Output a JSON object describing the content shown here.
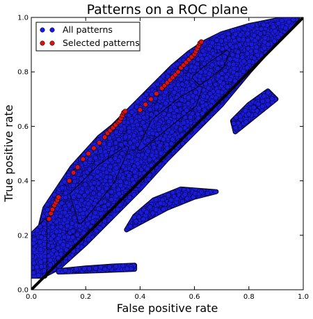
{
  "chart_data": {
    "type": "scatter",
    "title": "Patterns on a ROC plane",
    "xlabel": "False positive rate",
    "ylabel": "True positive rate",
    "xlim": [
      0.0,
      1.0
    ],
    "ylim": [
      0.0,
      1.0
    ],
    "xticks": [
      "0.0",
      "0.2",
      "0.4",
      "0.6",
      "0.8",
      "1.0"
    ],
    "yticks": [
      "0.0",
      "0.2",
      "0.4",
      "0.6",
      "0.8",
      "1.0"
    ],
    "grid": false,
    "legend_position": "top-left",
    "diagonal": {
      "x": [
        0.0,
        1.0
      ],
      "y": [
        0.0,
        1.0
      ],
      "color": "#000000"
    },
    "series": [
      {
        "name": "All patterns",
        "color": "#1a1adc",
        "edge_color": "#000000",
        "regions": [
          {
            "polygon": [
              [
                0.0,
                0.05
              ],
              [
                0.0,
                0.1
              ],
              [
                0.05,
                0.3
              ],
              [
                0.15,
                0.45
              ],
              [
                0.25,
                0.56
              ],
              [
                0.3,
                0.6
              ],
              [
                0.34,
                0.64
              ],
              [
                0.4,
                0.7
              ],
              [
                0.46,
                0.76
              ],
              [
                0.52,
                0.82
              ],
              [
                0.58,
                0.87
              ],
              [
                0.64,
                0.91
              ],
              [
                0.7,
                0.94
              ],
              [
                0.8,
                0.97
              ],
              [
                0.9,
                0.99
              ],
              [
                0.98,
                1.0
              ],
              [
                0.9,
                0.91
              ],
              [
                0.8,
                0.8
              ],
              [
                0.7,
                0.68
              ],
              [
                0.6,
                0.58
              ],
              [
                0.5,
                0.48
              ],
              [
                0.4,
                0.37
              ],
              [
                0.3,
                0.27
              ],
              [
                0.2,
                0.17
              ],
              [
                0.1,
                0.08
              ],
              [
                0.04,
                0.05
              ]
            ]
          },
          {
            "polygon": [
              [
                0.4,
                0.52
              ],
              [
                0.5,
                0.6
              ],
              [
                0.6,
                0.68
              ],
              [
                0.62,
                0.74
              ],
              [
                0.55,
                0.7
              ],
              [
                0.45,
                0.62
              ]
            ]
          },
          {
            "polygon": [
              [
                0.18,
                0.25
              ],
              [
                0.3,
                0.4
              ],
              [
                0.35,
                0.52
              ],
              [
                0.25,
                0.45
              ],
              [
                0.15,
                0.35
              ]
            ]
          },
          {
            "polygon": [
              [
                0.35,
                0.22
              ],
              [
                0.5,
                0.3
              ],
              [
                0.6,
                0.34
              ],
              [
                0.68,
                0.36
              ],
              [
                0.55,
                0.37
              ],
              [
                0.45,
                0.33
              ],
              [
                0.38,
                0.27
              ]
            ]
          },
          {
            "polygon": [
              [
                0.75,
                0.58
              ],
              [
                0.85,
                0.66
              ],
              [
                0.9,
                0.7
              ],
              [
                0.87,
                0.73
              ],
              [
                0.8,
                0.68
              ],
              [
                0.74,
                0.62
              ]
            ]
          },
          {
            "polygon": [
              [
                0.1,
                0.07
              ],
              [
                0.2,
                0.08
              ],
              [
                0.3,
                0.087
              ],
              [
                0.38,
                0.09
              ],
              [
                0.38,
                0.075
              ],
              [
                0.25,
                0.07
              ],
              [
                0.1,
                0.065
              ]
            ]
          },
          {
            "polygon": [
              [
                0.0,
                0.05
              ],
              [
                0.05,
                0.05
              ],
              [
                0.05,
                0.25
              ],
              [
                0.0,
                0.2
              ]
            ]
          },
          {
            "polygon": [
              [
                0.6,
                0.78
              ],
              [
                0.66,
                0.83
              ],
              [
                0.72,
                0.87
              ],
              [
                0.7,
                0.82
              ],
              [
                0.62,
                0.76
              ]
            ]
          }
        ]
      },
      {
        "name": "Selected patterns",
        "color": "#dd1111",
        "edge_color": "#000000",
        "points": [
          [
            0.065,
            0.26
          ],
          [
            0.072,
            0.28
          ],
          [
            0.078,
            0.295
          ],
          [
            0.085,
            0.31
          ],
          [
            0.09,
            0.32
          ],
          [
            0.096,
            0.33
          ],
          [
            0.1,
            0.34
          ],
          [
            0.14,
            0.4
          ],
          [
            0.155,
            0.43
          ],
          [
            0.17,
            0.45
          ],
          [
            0.19,
            0.48
          ],
          [
            0.21,
            0.5
          ],
          [
            0.23,
            0.52
          ],
          [
            0.25,
            0.54
          ],
          [
            0.27,
            0.56
          ],
          [
            0.28,
            0.575
          ],
          [
            0.29,
            0.585
          ],
          [
            0.3,
            0.595
          ],
          [
            0.31,
            0.605
          ],
          [
            0.32,
            0.615
          ],
          [
            0.325,
            0.62
          ],
          [
            0.33,
            0.63
          ],
          [
            0.335,
            0.64
          ],
          [
            0.34,
            0.65
          ],
          [
            0.345,
            0.655
          ],
          [
            0.4,
            0.66
          ],
          [
            0.42,
            0.68
          ],
          [
            0.44,
            0.7
          ],
          [
            0.46,
            0.72
          ],
          [
            0.48,
            0.74
          ],
          [
            0.49,
            0.75
          ],
          [
            0.5,
            0.76
          ],
          [
            0.51,
            0.77
          ],
          [
            0.52,
            0.78
          ],
          [
            0.53,
            0.79
          ],
          [
            0.54,
            0.8
          ],
          [
            0.55,
            0.815
          ],
          [
            0.56,
            0.825
          ],
          [
            0.57,
            0.835
          ],
          [
            0.58,
            0.845
          ],
          [
            0.59,
            0.855
          ],
          [
            0.6,
            0.865
          ],
          [
            0.605,
            0.875
          ],
          [
            0.61,
            0.885
          ],
          [
            0.615,
            0.895
          ],
          [
            0.62,
            0.905
          ],
          [
            0.625,
            0.91
          ]
        ]
      }
    ]
  }
}
